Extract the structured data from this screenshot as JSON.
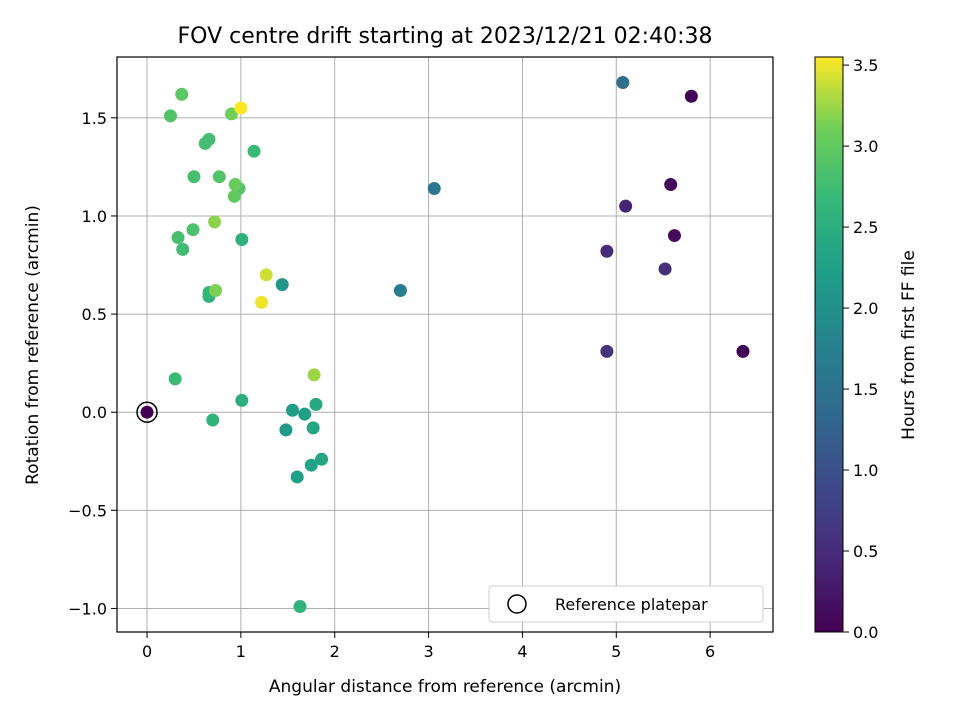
{
  "chart_data": {
    "type": "scatter",
    "title": "FOV centre drift starting at 2023/12/21 02:40:38",
    "xlabel": "Angular distance from reference (arcmin)",
    "ylabel": "Rotation from reference (arcmin)",
    "xlim": [
      -0.32,
      6.67
    ],
    "ylim": [
      -1.12,
      1.81
    ],
    "x_ticks": [
      0,
      1,
      2,
      3,
      4,
      5,
      6
    ],
    "y_ticks": [
      -1.0,
      -0.5,
      0.0,
      0.5,
      1.0,
      1.5
    ],
    "x_tick_labels": [
      "0",
      "1",
      "2",
      "3",
      "4",
      "5",
      "6"
    ],
    "y_tick_labels": [
      "−1.0",
      "−0.5",
      "0.0",
      "0.5",
      "1.0",
      "1.5"
    ],
    "grid": true,
    "colorbar": {
      "label": "Hours from first FF file",
      "colormap": "viridis",
      "range": [
        0,
        3.55
      ],
      "ticks": [
        0.0,
        0.5,
        1.0,
        1.5,
        2.0,
        2.5,
        3.0,
        3.5
      ],
      "tick_labels": [
        "0.0",
        "0.5",
        "1.0",
        "1.5",
        "2.0",
        "2.5",
        "3.0",
        "3.5"
      ]
    },
    "legend": {
      "position": "lower-right",
      "entries": [
        "Reference platepar"
      ]
    },
    "reference_point": {
      "x": 0,
      "y": 0,
      "hours": 0.0
    },
    "points": [
      {
        "x": 5.8,
        "y": 1.61,
        "hours": 0.02
      },
      {
        "x": 6.35,
        "y": 0.31,
        "hours": 0.05
      },
      {
        "x": 5.58,
        "y": 1.16,
        "hours": 0.08
      },
      {
        "x": 5.62,
        "y": 0.9,
        "hours": 0.1
      },
      {
        "x": 5.1,
        "y": 1.05,
        "hours": 0.4
      },
      {
        "x": 4.9,
        "y": 0.82,
        "hours": 0.5
      },
      {
        "x": 5.52,
        "y": 0.73,
        "hours": 0.55
      },
      {
        "x": 4.9,
        "y": 0.31,
        "hours": 0.6
      },
      {
        "x": 5.07,
        "y": 1.68,
        "hours": 1.45
      },
      {
        "x": 3.06,
        "y": 1.14,
        "hours": 1.6
      },
      {
        "x": 2.7,
        "y": 0.62,
        "hours": 1.7
      },
      {
        "x": 1.44,
        "y": 0.65,
        "hours": 2.1
      },
      {
        "x": 1.48,
        "y": -0.09,
        "hours": 2.15
      },
      {
        "x": 1.55,
        "y": 0.01,
        "hours": 2.2
      },
      {
        "x": 1.68,
        "y": -0.01,
        "hours": 2.25
      },
      {
        "x": 1.6,
        "y": -0.33,
        "hours": 2.25
      },
      {
        "x": 1.75,
        "y": -0.27,
        "hours": 2.3
      },
      {
        "x": 1.86,
        "y": -0.24,
        "hours": 2.35
      },
      {
        "x": 1.77,
        "y": -0.08,
        "hours": 2.35
      },
      {
        "x": 1.8,
        "y": 0.04,
        "hours": 2.4
      },
      {
        "x": 1.01,
        "y": 0.06,
        "hours": 2.5
      },
      {
        "x": 0.7,
        "y": -0.04,
        "hours": 2.6
      },
      {
        "x": 1.63,
        "y": -0.99,
        "hours": 2.6
      },
      {
        "x": 0.66,
        "y": 0.59,
        "hours": 2.55
      },
      {
        "x": 1.01,
        "y": 0.88,
        "hours": 2.55
      },
      {
        "x": 0.66,
        "y": 0.61,
        "hours": 2.65
      },
      {
        "x": 0.3,
        "y": 0.17,
        "hours": 2.7
      },
      {
        "x": 1.14,
        "y": 1.33,
        "hours": 2.7
      },
      {
        "x": 0.38,
        "y": 0.83,
        "hours": 2.75
      },
      {
        "x": 0.33,
        "y": 0.89,
        "hours": 2.8
      },
      {
        "x": 0.49,
        "y": 0.93,
        "hours": 2.85
      },
      {
        "x": 0.5,
        "y": 1.2,
        "hours": 2.8
      },
      {
        "x": 0.62,
        "y": 1.37,
        "hours": 2.8
      },
      {
        "x": 0.66,
        "y": 1.39,
        "hours": 2.8
      },
      {
        "x": 0.77,
        "y": 1.2,
        "hours": 2.9
      },
      {
        "x": 0.98,
        "y": 1.14,
        "hours": 2.9
      },
      {
        "x": 0.25,
        "y": 1.51,
        "hours": 2.9
      },
      {
        "x": 0.37,
        "y": 1.62,
        "hours": 2.95
      },
      {
        "x": 0.93,
        "y": 1.1,
        "hours": 3.0
      },
      {
        "x": 0.94,
        "y": 1.16,
        "hours": 3.05
      },
      {
        "x": 0.9,
        "y": 1.52,
        "hours": 3.1
      },
      {
        "x": 0.73,
        "y": 0.62,
        "hours": 3.15
      },
      {
        "x": 0.72,
        "y": 0.97,
        "hours": 3.2
      },
      {
        "x": 1.78,
        "y": 0.19,
        "hours": 3.25
      },
      {
        "x": 1.27,
        "y": 0.7,
        "hours": 3.4
      },
      {
        "x": 1.22,
        "y": 0.56,
        "hours": 3.5
      },
      {
        "x": 1.0,
        "y": 1.55,
        "hours": 3.55
      }
    ]
  }
}
